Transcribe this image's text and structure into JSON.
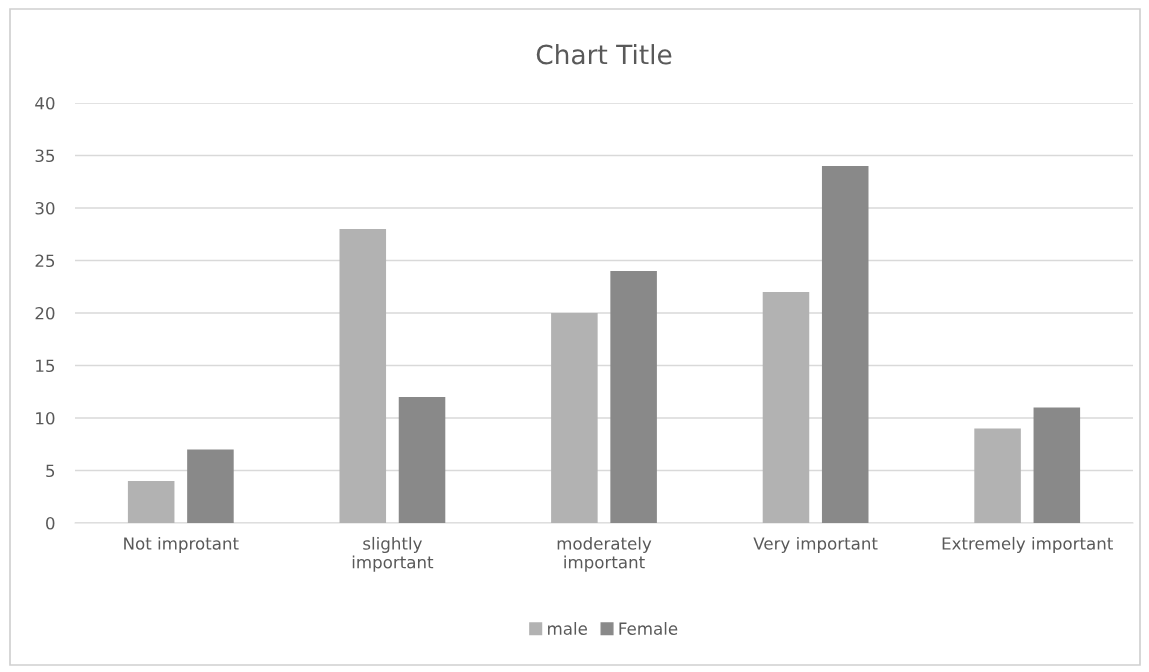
{
  "chart_data": {
    "type": "bar",
    "title": "Chart Title",
    "categories": [
      "Not improtant",
      "slightly\nimportant",
      "moderately\nimportant",
      "Very important",
      "Extremely important"
    ],
    "series": [
      {
        "name": "male",
        "color": "#b2b2b2",
        "values": [
          4,
          28,
          20,
          22,
          9
        ]
      },
      {
        "name": "Female",
        "color": "#898989",
        "values": [
          7,
          12,
          24,
          34,
          11
        ]
      }
    ],
    "ylim": [
      0,
      40
    ],
    "yticks": [
      0,
      5,
      10,
      15,
      20,
      25,
      30,
      35,
      40
    ],
    "grid": "y",
    "legend": "bottom"
  }
}
